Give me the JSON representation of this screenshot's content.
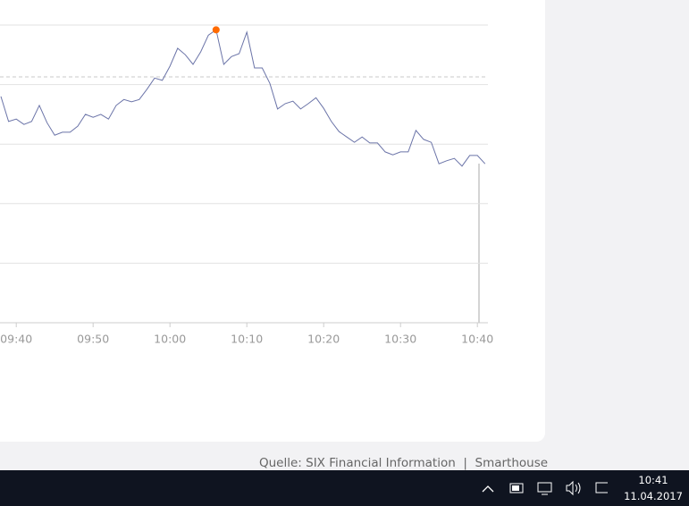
{
  "chart_data": {
    "type": "line",
    "x": [
      "09:38",
      "09:39",
      "09:40",
      "09:41",
      "09:42",
      "09:43",
      "09:44",
      "09:45",
      "09:46",
      "09:47",
      "09:48",
      "09:49",
      "09:50",
      "09:51",
      "09:52",
      "09:53",
      "09:54",
      "09:55",
      "09:56",
      "09:57",
      "09:58",
      "09:59",
      "10:00",
      "10:01",
      "10:02",
      "10:03",
      "10:04",
      "10:05",
      "10:06",
      "10:07",
      "10:08",
      "10:09",
      "10:10",
      "10:11",
      "10:12",
      "10:13",
      "10:14",
      "10:15",
      "10:16",
      "10:17",
      "10:18",
      "10:19",
      "10:20",
      "10:21",
      "10:22",
      "10:23",
      "10:24",
      "10:25",
      "10:26",
      "10:27",
      "10:28",
      "10:29",
      "10:30",
      "10:31",
      "10:32",
      "10:33",
      "10:34",
      "10:35",
      "10:36",
      "10:37",
      "10:38",
      "10:39",
      "10:40",
      "10:41"
    ],
    "series": [
      {
        "color": "#6b74a8",
        "values": [
          3.8,
          3.38,
          3.42,
          3.33,
          3.38,
          3.65,
          3.36,
          3.15,
          3.2,
          3.2,
          3.3,
          3.5,
          3.45,
          3.5,
          3.42,
          3.65,
          3.75,
          3.71,
          3.75,
          3.92,
          4.11,
          4.07,
          4.31,
          4.61,
          4.5,
          4.34,
          4.55,
          4.83,
          4.92,
          4.34,
          4.47,
          4.52,
          4.88,
          4.28,
          4.28,
          4.02,
          3.59,
          3.68,
          3.72,
          3.59,
          3.68,
          3.78,
          3.6,
          3.38,
          3.21,
          3.12,
          3.03,
          3.12,
          3.02,
          3.02,
          2.87,
          2.82,
          2.87,
          2.87,
          3.23,
          3.08,
          3.03,
          2.67,
          2.72,
          2.76,
          2.63,
          2.81,
          2.81,
          2.67
        ]
      }
    ],
    "xlim": [
      "09:38",
      "10:41"
    ],
    "xticks": [
      "09:40",
      "09:50",
      "10:00",
      "10:10",
      "10:20",
      "10:30",
      "10:40"
    ],
    "ylim": [
      0,
      5
    ],
    "yticks": [
      0,
      1,
      2,
      3,
      4,
      5
    ],
    "grid": true,
    "reference_line": 4.13,
    "max_marker_color": "#ff6a00"
  },
  "footer": {
    "source": "Quelle: SIX Financial Information",
    "provider": "Smarthouse"
  },
  "taskbar": {
    "time": "10:41",
    "date": "11.04.2017"
  }
}
